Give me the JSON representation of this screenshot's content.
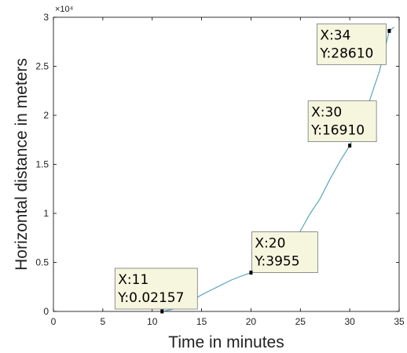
{
  "chart_data": {
    "type": "line",
    "xlabel": "Time in minutes",
    "ylabel": "Horizontal distance in meters",
    "y_exponent_label": "×10⁴",
    "xlim": [
      0,
      35
    ],
    "ylim": [
      0,
      30000
    ],
    "x_ticks": [
      0,
      5,
      10,
      15,
      20,
      25,
      30,
      35
    ],
    "x_tick_labels": [
      "0",
      "5",
      "10",
      "15",
      "20",
      "25",
      "30",
      "35"
    ],
    "y_ticks": [
      0,
      5000,
      10000,
      15000,
      20000,
      25000,
      30000
    ],
    "y_tick_labels": [
      "0",
      "0.5",
      "1",
      "1.5",
      "2",
      "2.5",
      "3"
    ],
    "grid": false,
    "series": [
      {
        "color": "#5aa6bd",
        "x": [
          11,
          12,
          13,
          14,
          15,
          16,
          17,
          18,
          19,
          20,
          21,
          22,
          23,
          24,
          25,
          26,
          27,
          28,
          29,
          30,
          31,
          32,
          33,
          34,
          34.5
        ],
        "y": [
          0.02157,
          200,
          600,
          1100,
          1700,
          2200,
          2700,
          3200,
          3600,
          3955,
          4300,
          5000,
          5700,
          6500,
          8200,
          10000,
          11500,
          13500,
          15300,
          16910,
          19000,
          21500,
          24500,
          28610,
          29000
        ]
      }
    ],
    "annotations": [
      {
        "x": 11,
        "y": 0.02157,
        "text_x": "X:11",
        "text_y": "Y:0.02157"
      },
      {
        "x": 20,
        "y": 3955,
        "text_x": "X:20",
        "text_y": "Y:3955"
      },
      {
        "x": 30,
        "y": 16910,
        "text_x": "X:30",
        "text_y": "Y:16910"
      },
      {
        "x": 34,
        "y": 28610,
        "text_x": "X:34",
        "text_y": "Y:28610"
      }
    ]
  }
}
